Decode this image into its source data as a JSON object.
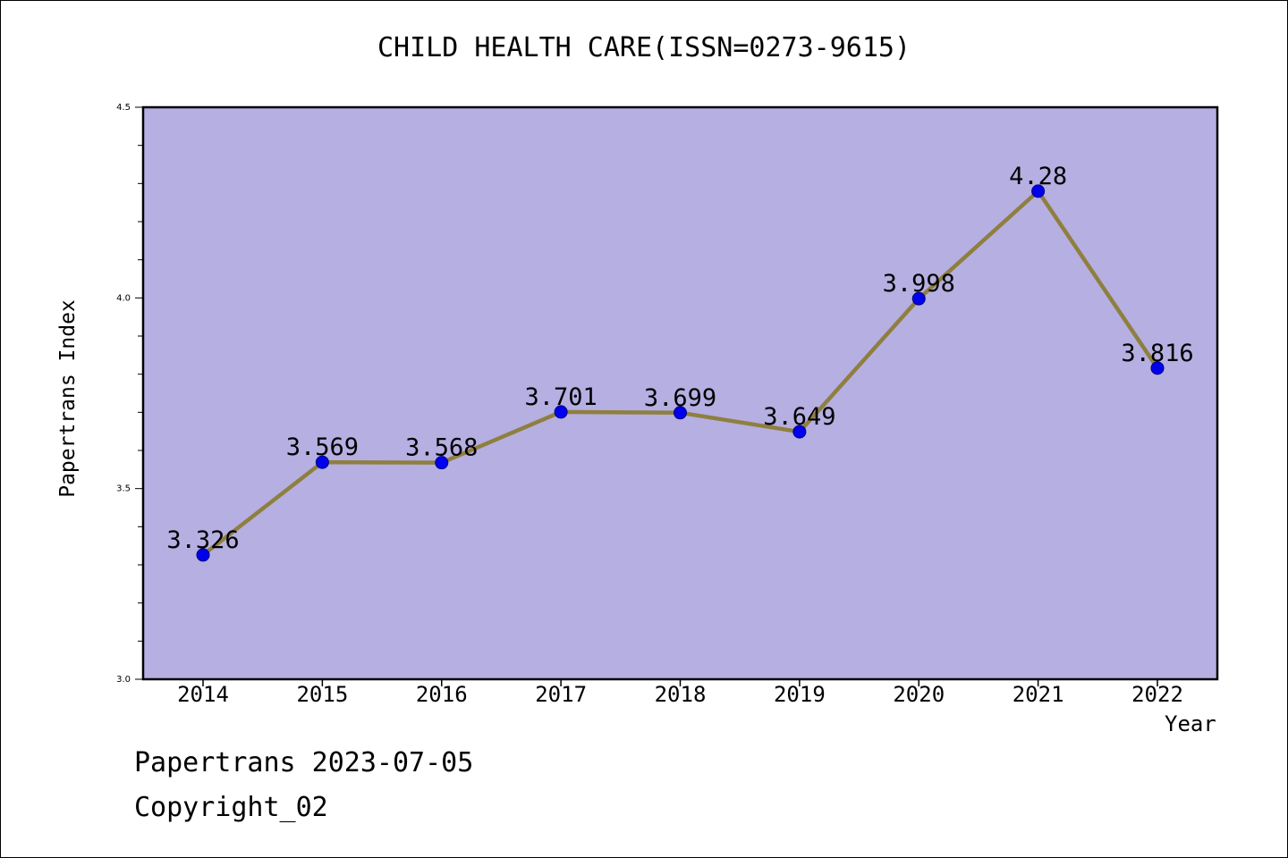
{
  "colors": {
    "plot_background": "#b5afe2",
    "line": "#8f7f3f",
    "marker": "#0000ee"
  },
  "footer": {
    "line1": "Papertrans 2023-07-05",
    "line2": "Copyright_02"
  },
  "chart_data": {
    "type": "line",
    "title": "CHILD HEALTH CARE(ISSN=0273-9615)",
    "xlabel": "Year",
    "ylabel": "Papertrans Index",
    "categories": [
      "2014",
      "2015",
      "2016",
      "2017",
      "2018",
      "2019",
      "2020",
      "2021",
      "2022"
    ],
    "series": [
      {
        "values": [
          3.326,
          3.569,
          3.568,
          3.701,
          3.699,
          3.649,
          3.998,
          4.28,
          3.816
        ],
        "data_labels": [
          "3.326",
          "3.569",
          "3.568",
          "3.701",
          "3.699",
          "3.649",
          "3.998",
          "4.28",
          "3.816"
        ]
      }
    ],
    "ylim": [
      3.0,
      4.5
    ],
    "yticks": [
      "3.0",
      "3.5",
      "4.0",
      "4.5"
    ],
    "grid": false,
    "legend": "none"
  }
}
